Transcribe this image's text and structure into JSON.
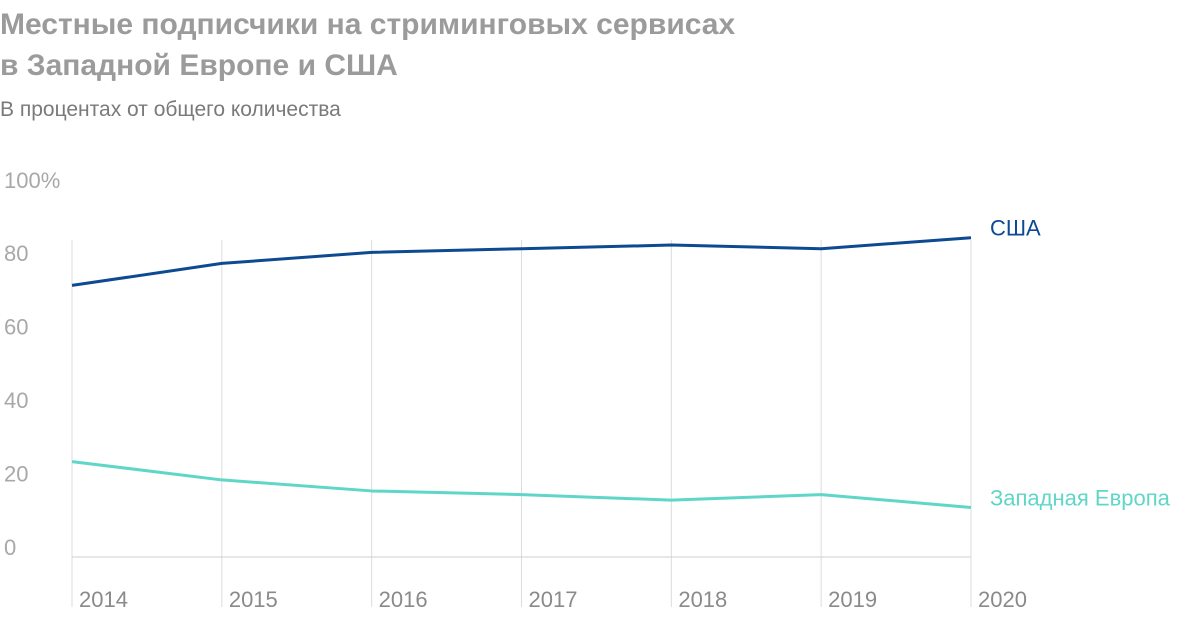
{
  "chart_data": {
    "type": "line",
    "title": "Местные подписчики на стриминговых сервисах\nв Западной Европе и США",
    "subtitle": "В процентах от общего количества",
    "categories": [
      "2014",
      "2015",
      "2016",
      "2017",
      "2018",
      "2019",
      "2020"
    ],
    "series": [
      {
        "name": "США",
        "color": "#0d4a91",
        "values": [
          74,
          80,
          83,
          84,
          85,
          84,
          87
        ]
      },
      {
        "name": "Западная Европа",
        "color": "#5fd6c8",
        "values": [
          26,
          21,
          18,
          17,
          15.5,
          17,
          13.5
        ]
      }
    ],
    "ylim": [
      0,
      100
    ],
    "yticks": [
      0,
      20,
      40,
      60,
      80,
      {
        "value": 100,
        "label": "100%"
      }
    ],
    "grid": true
  }
}
